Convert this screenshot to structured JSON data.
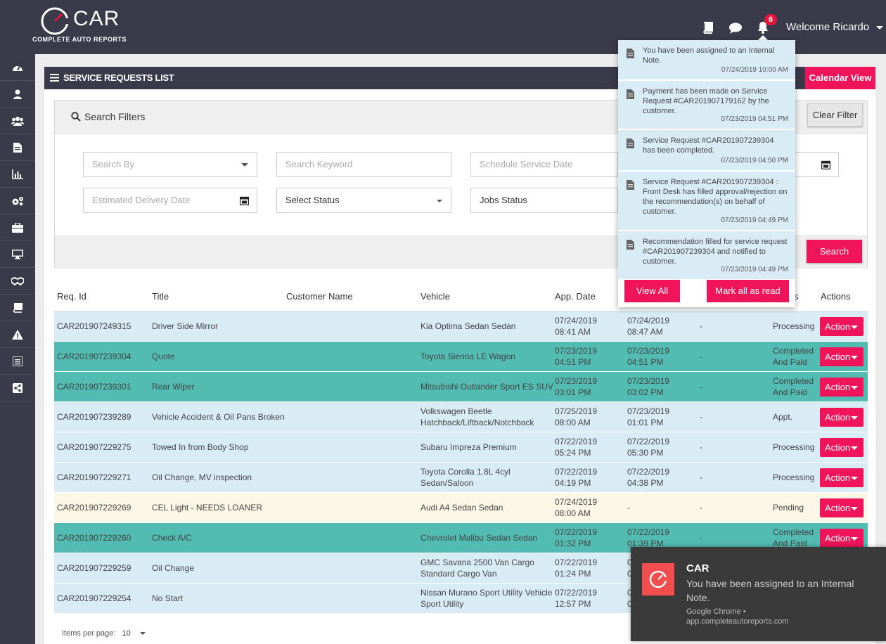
{
  "brand": {
    "name": "CAR",
    "tagline": "COMPLETE AUTO REPORTS"
  },
  "header": {
    "notification_count": "6",
    "welcome": "Welcome Ricardo",
    "icons": [
      "book-icon",
      "chat-icon",
      "bell-icon",
      "caret-down-icon"
    ]
  },
  "sidebar": {
    "icons": [
      "dashboard-icon",
      "user-icon",
      "users-icon",
      "document-icon",
      "chart-icon",
      "gears-icon",
      "briefcase-icon",
      "monitor-icon",
      "handshake-icon",
      "book-icon",
      "warning-icon",
      "list-icon",
      "share-icon"
    ]
  },
  "page": {
    "title": "SERVICE REQUESTS LIST",
    "calendar_view": "Calendar View"
  },
  "filters": {
    "title": "Search Filters",
    "clear_filter": "Clear Filter",
    "search_by": "Search By",
    "search_keyword": "Search Keyword",
    "schedule_service_date": "Schedule Service Date",
    "estimated_delivery_date": "Estimated Delivery Date",
    "select_status": "Select Status",
    "jobs_status": "Jobs Status",
    "search": "Search"
  },
  "table": {
    "columns": [
      "Req. Id",
      "Title",
      "Customer Name",
      "Vehicle",
      "App. Date",
      "s",
      "Actions"
    ],
    "action_label": "Action",
    "rows": [
      {
        "id": "CAR201907249315",
        "title": "Driver Side Mirror",
        "customer": "",
        "vehicle1": "Kia Optima Sedan Sedan",
        "vehicle2": "",
        "app1": "07/24/2019",
        "app2": "08:41 AM",
        "d1": "07/24/2019",
        "d2": "08:47 AM",
        "dash": "-",
        "status1": "Processing",
        "status2": "",
        "color": "blue"
      },
      {
        "id": "CAR201907239304",
        "title": "Quote",
        "customer": "",
        "vehicle1": "Toyota Sienna LE Wagon",
        "vehicle2": "",
        "app1": "07/23/2019",
        "app2": "04:51 PM",
        "d1": "07/23/2019",
        "d2": "04:51 PM",
        "dash": "-",
        "status1": "Completed",
        "status2": "And Paid",
        "color": "teal"
      },
      {
        "id": "CAR201907239301",
        "title": "Rear Wiper",
        "customer": "",
        "vehicle1": "Mitsubishi Outlander Sport ES SUV",
        "vehicle2": "",
        "app1": "07/23/2019",
        "app2": "03:01 PM",
        "d1": "07/23/2019",
        "d2": "03:02 PM",
        "dash": "-",
        "status1": "Completed",
        "status2": "And Paid",
        "color": "teal"
      },
      {
        "id": "CAR201907239289",
        "title": "Vehicle Accident & Oil Pans Broken",
        "customer": "",
        "vehicle1": "Volkswagen Beetle",
        "vehicle2": "Hatchback/Liftback/Notchback",
        "app1": "07/25/2019",
        "app2": "08:00 AM",
        "d1": "07/23/2019",
        "d2": "01:01 PM",
        "dash": "-",
        "status1": "Appt.",
        "status2": "",
        "color": "blue"
      },
      {
        "id": "CAR201907229275",
        "title": "Towed In from Body Shop",
        "customer": "",
        "vehicle1": "Subaru Impreza Premium",
        "vehicle2": "",
        "app1": "07/22/2019",
        "app2": "05:24 PM",
        "d1": "07/22/2019",
        "d2": "05:30 PM",
        "dash": "-",
        "status1": "Processing",
        "status2": "",
        "color": "blue"
      },
      {
        "id": "CAR201907229271",
        "title": "Oil Change, MV inspection",
        "customer": "",
        "vehicle1": "Toyota Corolla 1.8L 4cyl",
        "vehicle2": "Sedan/Saloon",
        "app1": "07/22/2019",
        "app2": "04:19 PM",
        "d1": "07/22/2019",
        "d2": "04:38 PM",
        "dash": "-",
        "status1": "Processing",
        "status2": "",
        "color": "blue"
      },
      {
        "id": "CAR201907229269",
        "title": "CEL Light - NEEDS LOANER",
        "customer": "",
        "vehicle1": "Audi A4 Sedan Sedan",
        "vehicle2": "",
        "app1": "07/24/2019",
        "app2": "08:00 AM",
        "d1": "-",
        "d2": "",
        "dash": "-",
        "status1": "Pending",
        "status2": "",
        "color": "cream"
      },
      {
        "id": "CAR201907229260",
        "title": "Check A/C",
        "customer": "",
        "vehicle1": "Chevrolet Malibu Sedan Sedan",
        "vehicle2": "",
        "app1": "07/22/2019",
        "app2": "01:32 PM",
        "d1": "07/22/2019",
        "d2": "01:39 PM",
        "dash": "-",
        "status1": "Completed",
        "status2": "And Paid",
        "color": "teal"
      },
      {
        "id": "CAR201907229259",
        "title": "Oil Change",
        "customer": "",
        "vehicle1": "GMC Savana 2500 Van Cargo",
        "vehicle2": "Standard Cargo Van",
        "app1": "07/22/2019",
        "app2": "01:24 PM",
        "d1": "0",
        "d2": "0",
        "dash": "",
        "status1": "",
        "status2": "",
        "color": "blue"
      },
      {
        "id": "CAR201907229254",
        "title": "No Start",
        "customer": "",
        "vehicle1": "Nissan Murano Sport Utility Vehicle",
        "vehicle2": "Sport Utility",
        "app1": "07/22/2019",
        "app2": "12:57 PM",
        "d1": "0",
        "d2": "0",
        "dash": "",
        "status1": "",
        "status2": "",
        "color": "blue"
      }
    ]
  },
  "pagination": {
    "label": "Items per page:",
    "value": "10"
  },
  "notifications": {
    "items": [
      {
        "text": "You have been assigned to an Internal Note.",
        "time": "07/24/2019 10:00 AM"
      },
      {
        "text": "Payment has been made on Service Request #CAR201907179162 by the customer.",
        "time": "07/23/2019 04:51 PM"
      },
      {
        "text": "Service Request #CAR201907239304 has been completed.",
        "time": "07/23/2019 04:50 PM"
      },
      {
        "text": "Service Request #CAR201907239304 : Front Desk has filled approval/rejection on the recommendation(s) on behalf of customer.",
        "time": "07/23/2019 04:49 PM"
      },
      {
        "text": "Recommendation filled for service request #CAR201907239304 and notified to customer.",
        "time": "07/23/2019 04:49 PM"
      }
    ],
    "view_all": "View All",
    "mark_all_read": "Mark all as read"
  },
  "toast": {
    "title": "CAR",
    "message": "You have been assigned to an Internal Note.",
    "source": "Google Chrome •",
    "url": "app.completeautoreports.com"
  }
}
